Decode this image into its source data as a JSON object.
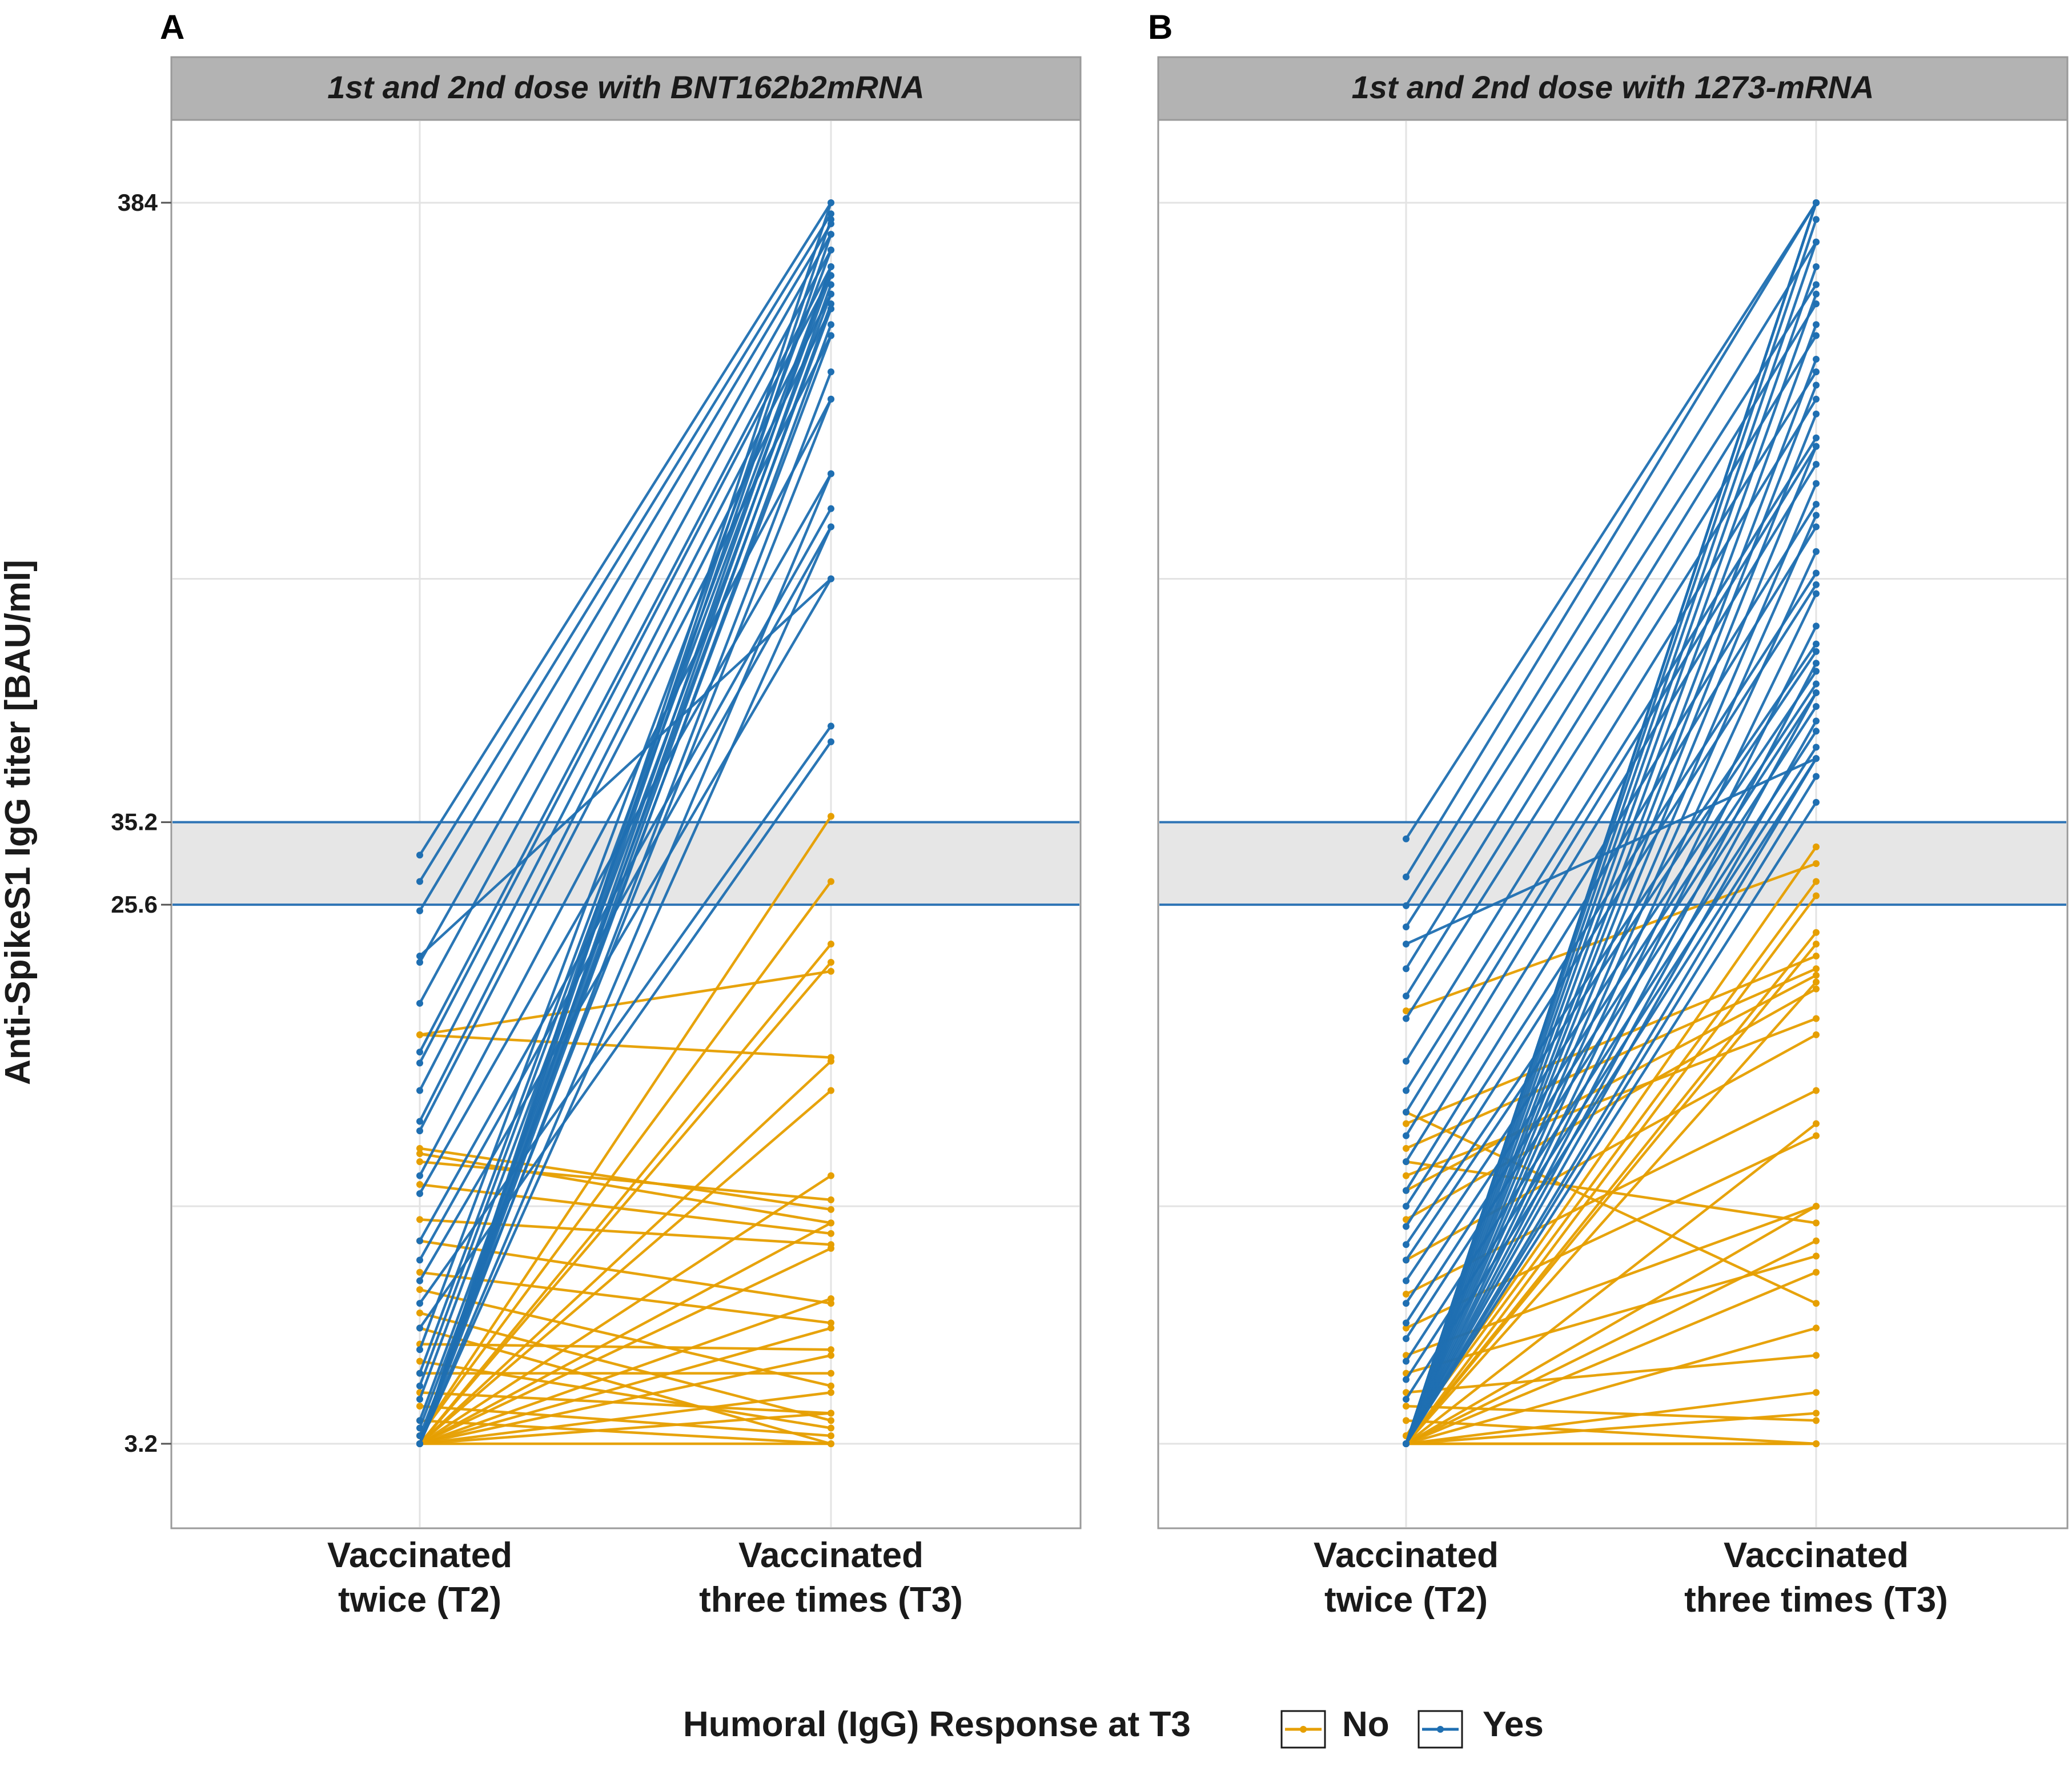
{
  "chart_data": {
    "type": "line",
    "y_axis_label": "Anti-SpikeS1 IgG titer [BAU/ml]",
    "y_scale": "log",
    "y_range": [
      2.4,
      560
    ],
    "y_ticks": [
      {
        "value": 3.2,
        "label": "3.2"
      },
      {
        "value": 25.6,
        "label": "25.6"
      },
      {
        "value": 35.2,
        "label": "35.2"
      },
      {
        "value": 384,
        "label": "384"
      }
    ],
    "gridlines_extra": [
      8.0,
      90.0
    ],
    "reference_band": {
      "low": 25.6,
      "high": 35.2
    },
    "x_categories": [
      {
        "line1": "Vaccinated",
        "line2": "twice (T2)"
      },
      {
        "line1": "Vaccinated",
        "line2": "three times (T3)"
      }
    ],
    "colors": {
      "No": "#e69f00",
      "Yes": "#1f6fb2",
      "ref": "#2e74b5"
    },
    "legend": {
      "title": "Humoral (IgG) Response at T3",
      "items": [
        {
          "key": "No",
          "label": "No"
        },
        {
          "key": "Yes",
          "label": "Yes"
        }
      ],
      "position": "bottom"
    },
    "panels": [
      {
        "letter": "A",
        "title": "1st and 2nd dose with BNT162b2mRNA",
        "series": [
          {
            "name": "Yes",
            "pairs": [
              [
                31.0,
                384
              ],
              [
                28.0,
                368
              ],
              [
                25.0,
                354
              ],
              [
                20.5,
                340
              ],
              [
                17.5,
                320
              ],
              [
                14.5,
                300
              ],
              [
                13.9,
                290
              ],
              [
                12.5,
                270
              ],
              [
                11.1,
                255
              ],
              [
                10.7,
                230
              ],
              [
                9.0,
                180
              ],
              [
                8.4,
                135
              ],
              [
                7.0,
                118
              ],
              [
                6.5,
                110
              ],
              [
                6.0,
                90
              ],
              [
                5.5,
                51
              ],
              [
                5.0,
                48
              ],
              [
                4.6,
                320
              ],
              [
                4.2,
                300
              ],
              [
                4.0,
                290
              ],
              [
                3.8,
                270
              ],
              [
                3.5,
                255
              ],
              [
                3.4,
                230
              ],
              [
                3.3,
                180
              ],
              [
                3.2,
                384
              ],
              [
                3.2,
                360
              ],
              [
                3.2,
                340
              ],
              [
                3.2,
                300
              ],
              [
                3.2,
                280
              ],
              [
                3.2,
                260
              ],
              [
                3.2,
                240
              ],
              [
                3.2,
                200
              ],
              [
                3.2,
                135
              ],
              [
                3.2,
                110
              ]
            ]
          },
          {
            "name": "Yes",
            "pairs": [
              [
                21.0,
                90
              ]
            ]
          },
          {
            "name": "No",
            "pairs": [
              [
                15.5,
                19.8
              ],
              [
                15.5,
                14.2
              ],
              [
                10.0,
                7.9
              ],
              [
                9.8,
                7.5
              ],
              [
                9.5,
                8.2
              ],
              [
                8.7,
                7.2
              ],
              [
                7.6,
                6.9
              ],
              [
                7.0,
                5.5
              ],
              [
                6.2,
                5.1
              ],
              [
                5.8,
                4.0
              ],
              [
                5.3,
                3.5
              ],
              [
                5.0,
                3.2
              ],
              [
                4.7,
                4.6
              ],
              [
                4.4,
                3.4
              ],
              [
                4.2,
                4.2
              ],
              [
                3.9,
                3.6
              ],
              [
                3.7,
                3.3
              ],
              [
                3.5,
                3.2
              ],
              [
                3.3,
                36.0
              ],
              [
                3.3,
                28.0
              ],
              [
                3.2,
                22.0
              ],
              [
                3.2,
                20.5
              ],
              [
                3.2,
                14.0
              ],
              [
                3.2,
                12.5
              ],
              [
                3.2,
                9.0
              ],
              [
                3.2,
                7.5
              ],
              [
                3.2,
                6.8
              ],
              [
                3.2,
                5.6
              ],
              [
                3.2,
                5.0
              ],
              [
                3.2,
                4.5
              ],
              [
                3.2,
                3.9
              ],
              [
                3.2,
                3.6
              ],
              [
                3.2,
                3.2
              ]
            ]
          }
        ]
      },
      {
        "letter": "B",
        "title": "1st and 2nd dose with 1273-mRNA",
        "series": [
          {
            "name": "Yes",
            "pairs": [
              [
                33.0,
                384
              ],
              [
                28.5,
                384
              ],
              [
                25.5,
                330
              ],
              [
                23.5,
                280
              ],
              [
                20.0,
                260
              ],
              [
                18.0,
                230
              ],
              [
                16.5,
                200
              ],
              [
                14.0,
                180
              ],
              [
                12.5,
                155
              ],
              [
                11.5,
                150
              ],
              [
                10.5,
                140
              ],
              [
                9.5,
                120
              ],
              [
                8.5,
                110
              ],
              [
                8.0,
                92
              ],
              [
                7.4,
                88
              ],
              [
                6.9,
                70
              ],
              [
                6.5,
                68
              ],
              [
                6.0,
                63
              ],
              [
                5.5,
                60
              ],
              [
                5.1,
                58
              ],
              [
                4.8,
                55
              ],
              [
                4.4,
                50
              ],
              [
                4.1,
                47
              ],
              [
                3.8,
                45
              ],
              [
                3.2,
                384
              ],
              [
                3.2,
                384
              ],
              [
                3.2,
                384
              ],
              [
                3.2,
                384
              ],
              [
                3.2,
                384
              ],
              [
                3.2,
                360
              ],
              [
                3.2,
                330
              ],
              [
                3.2,
                300
              ],
              [
                3.2,
                270
              ],
              [
                3.2,
                240
              ],
              [
                3.2,
                210
              ],
              [
                3.2,
                190
              ],
              [
                3.2,
                170
              ],
              [
                3.2,
                150
              ],
              [
                3.2,
                130
              ],
              [
                3.2,
                115
              ],
              [
                3.2,
                100
              ],
              [
                3.2,
                85
              ],
              [
                3.2,
                75
              ],
              [
                3.2,
                65
              ],
              [
                3.2,
                58
              ],
              [
                3.2,
                52
              ],
              [
                3.2,
                45
              ],
              [
                3.2,
                42
              ],
              [
                3.2,
                38
              ]
            ]
          },
          {
            "name": "Yes",
            "pairs": [
              [
                22.0,
                45
              ]
            ]
          },
          {
            "name": "No",
            "pairs": [
              [
                17.0,
                30.0
              ],
              [
                11.5,
                5.5
              ],
              [
                11.0,
                21.0
              ],
              [
                10.0,
                20.0
              ],
              [
                9.5,
                7.5
              ],
              [
                9.0,
                16.5
              ],
              [
                8.5,
                19.5
              ],
              [
                7.6,
                18.5
              ],
              [
                6.5,
                15.5
              ],
              [
                5.7,
                12.5
              ],
              [
                5.0,
                10.5
              ],
              [
                4.5,
                8.0
              ],
              [
                4.2,
                6.6
              ],
              [
                3.9,
                4.5
              ],
              [
                3.7,
                3.5
              ],
              [
                3.5,
                3.2
              ],
              [
                3.3,
                32.0
              ],
              [
                3.3,
                28.0
              ],
              [
                3.2,
                26.5
              ],
              [
                3.2,
                23.0
              ],
              [
                3.2,
                22.0
              ],
              [
                3.2,
                19.0
              ],
              [
                3.2,
                11.0
              ],
              [
                3.2,
                8.0
              ],
              [
                3.2,
                7.0
              ],
              [
                3.2,
                6.2
              ],
              [
                3.2,
                5.0
              ],
              [
                3.2,
                3.9
              ],
              [
                3.2,
                3.6
              ],
              [
                3.2,
                3.2
              ],
              [
                3.2,
                3.2
              ]
            ]
          }
        ]
      }
    ]
  }
}
